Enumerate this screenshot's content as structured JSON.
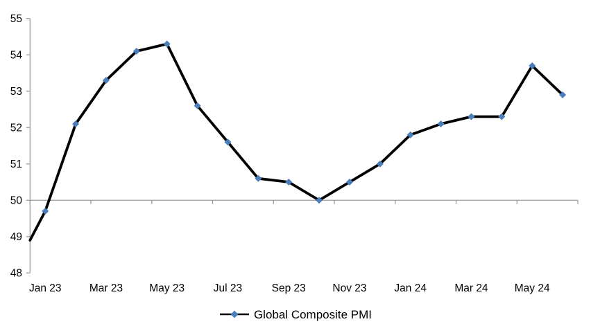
{
  "chart_data": {
    "type": "line",
    "title": "",
    "xlabel": "",
    "ylabel": "",
    "series": [
      {
        "name": "Global Composite PMI",
        "categories": [
          "Jan 23",
          "Feb 23",
          "Mar 23",
          "Apr 23",
          "May 23",
          "Jun 23",
          "Jul 23",
          "Aug 23",
          "Sep 23",
          "Oct 23",
          "Nov 23",
          "Dec 23",
          "Jan 24",
          "Feb 24",
          "Mar 24",
          "Apr 24",
          "May 24",
          "Jun 24"
        ],
        "values": [
          49.7,
          52.1,
          53.3,
          54.1,
          54.3,
          52.6,
          51.6,
          50.6,
          50.5,
          50.0,
          50.5,
          51.0,
          51.8,
          52.1,
          52.3,
          52.3,
          53.7,
          52.9
        ],
        "line_start_at_axis_value": 48.9,
        "line_color": "#000000",
        "marker": "diamond",
        "marker_color": "#4A7EBB"
      }
    ],
    "x_tick_labels": [
      "Jan 23",
      "Mar 23",
      "May 23",
      "Jul 23",
      "Sep 23",
      "Nov 23",
      "Jan 24",
      "Mar 24",
      "May 24"
    ],
    "y_ticks": [
      48,
      49,
      50,
      51,
      52,
      53,
      54,
      55
    ],
    "ylim": [
      48,
      55
    ],
    "x_axis_cross_value": 50,
    "grid": "off",
    "legend_position": "bottom-center",
    "axis_color": "#9c9c9c",
    "text_color": "#000000"
  },
  "legend": {
    "label": "Global Composite PMI"
  }
}
